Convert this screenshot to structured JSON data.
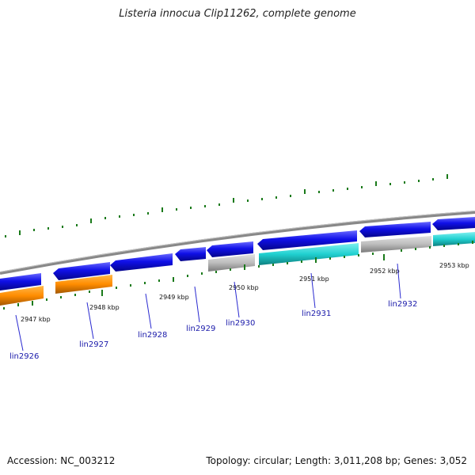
{
  "title": "Listeria innocua Clip11262, complete genome",
  "accession": "Accession: NC_003212",
  "topology": "Topology: circular; Length: 3,011,208 bp; Genes: 3,052",
  "colors": {
    "backbone": "#888888",
    "gene_blue": "#1010e8",
    "gene_orange": "#ff8c00",
    "gene_cyan": "#20d0d0",
    "gene_gray": "#bcbcbc",
    "tick_green": "#1a7a1a",
    "label_blue": "#1a1aaa"
  },
  "scale_ticks": [
    {
      "label": "2947 kbp"
    },
    {
      "label": "2948 kbp"
    },
    {
      "label": "2949 kbp"
    },
    {
      "label": "2950 kbp"
    },
    {
      "label": "2951 kbp"
    },
    {
      "label": "2952 kbp"
    },
    {
      "label": "2953 kbp"
    }
  ],
  "gene_labels": [
    "lin2926",
    "lin2927",
    "lin2928",
    "lin2929",
    "lin2930",
    "lin2931",
    "lin2932"
  ]
}
